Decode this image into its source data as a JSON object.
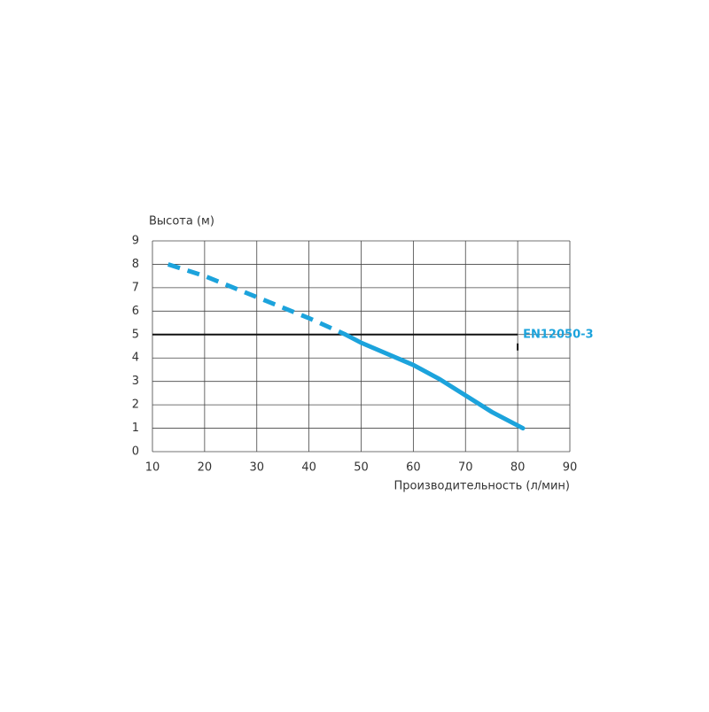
{
  "chart_data": {
    "type": "line",
    "ylabel": "Высота (м)",
    "xlabel": "Производительность (л/мин)",
    "xlim": [
      10,
      90
    ],
    "xticks": [
      10,
      20,
      30,
      40,
      50,
      60,
      70,
      80,
      90
    ],
    "ylim": [
      0,
      9
    ],
    "yticks": [
      0,
      1,
      2,
      3,
      4,
      5,
      6,
      7,
      8,
      9
    ],
    "grid": true,
    "series": [
      {
        "color": "#1ca3dc",
        "dash": true,
        "x": [
          13,
          20,
          30,
          40,
          47
        ],
        "values": [
          8,
          7.5,
          6.6,
          5.7,
          5.0
        ]
      },
      {
        "color": "#1ca3dc",
        "dash": false,
        "x": [
          47,
          50,
          60,
          65,
          70,
          75,
          81
        ],
        "values": [
          5.0,
          4.65,
          3.7,
          3.1,
          2.4,
          1.7,
          1.0
        ]
      }
    ],
    "reference": {
      "label": "EN12050-3",
      "y": 5,
      "x": [
        10,
        80
      ],
      "color": "#1ca3dc"
    }
  }
}
